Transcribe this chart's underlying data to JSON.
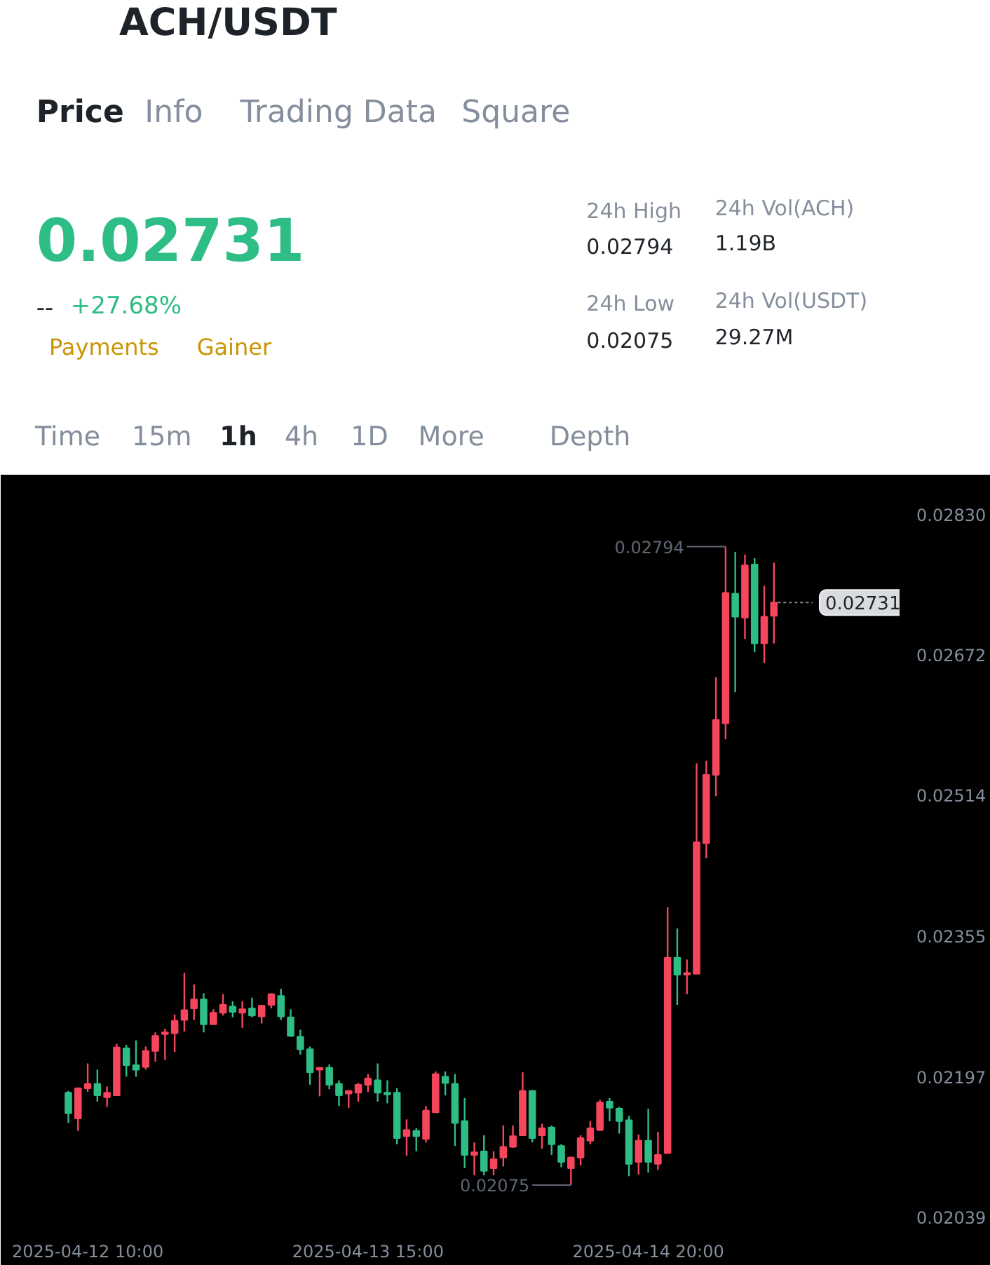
{
  "chart_data": {
    "type": "candlestick",
    "title": "ACH/USDT",
    "annotations": [
      "Price",
      "Info",
      "Trading Data",
      "Square",
      "0.02731",
      "--",
      "+27.68%",
      "Payments",
      "Gainer",
      "24h High",
      "0.02794",
      "24h Vol(ACH)",
      "1.19B",
      "24h Low",
      "0.02075",
      "24h Vol(USDT)",
      "29.27M",
      "Time",
      "15m",
      "1h",
      "4h",
      "1D",
      "More",
      "Depth",
      {
        "text": "0.02794",
        "x": "2025-04-15T04:00",
        "y": 0.02794
      },
      {
        "text": "0.02075",
        "x": "2025-04-14T12:00",
        "y": 0.02075
      },
      {
        "text": "0.02731",
        "x": "2025-04-15T09:00",
        "y": 0.02731
      }
    ],
    "x": [
      "2025-04-12T08:00",
      "2025-04-12T09:00",
      "2025-04-12T10:00",
      "2025-04-12T11:00",
      "2025-04-12T12:00",
      "2025-04-12T13:00",
      "2025-04-12T14:00",
      "2025-04-12T15:00",
      "2025-04-12T16:00",
      "2025-04-12T17:00",
      "2025-04-12T18:00",
      "2025-04-12T19:00",
      "2025-04-12T20:00",
      "2025-04-12T21:00",
      "2025-04-12T22:00",
      "2025-04-12T23:00",
      "2025-04-13T00:00",
      "2025-04-13T01:00",
      "2025-04-13T02:00",
      "2025-04-13T03:00",
      "2025-04-13T04:00",
      "2025-04-13T05:00",
      "2025-04-13T06:00",
      "2025-04-13T07:00",
      "2025-04-13T08:00",
      "2025-04-13T09:00",
      "2025-04-13T10:00",
      "2025-04-13T11:00",
      "2025-04-13T12:00",
      "2025-04-13T13:00",
      "2025-04-13T14:00",
      "2025-04-13T15:00",
      "2025-04-13T16:00",
      "2025-04-13T17:00",
      "2025-04-13T18:00",
      "2025-04-13T19:00",
      "2025-04-13T20:00",
      "2025-04-13T21:00",
      "2025-04-13T22:00",
      "2025-04-13T23:00",
      "2025-04-14T00:00",
      "2025-04-14T01:00",
      "2025-04-14T02:00",
      "2025-04-14T03:00",
      "2025-04-14T04:00",
      "2025-04-14T05:00",
      "2025-04-14T06:00",
      "2025-04-14T07:00",
      "2025-04-14T08:00",
      "2025-04-14T09:00",
      "2025-04-14T10:00",
      "2025-04-14T11:00",
      "2025-04-14T12:00",
      "2025-04-14T13:00",
      "2025-04-14T14:00",
      "2025-04-14T15:00",
      "2025-04-14T16:00",
      "2025-04-14T17:00",
      "2025-04-14T18:00",
      "2025-04-14T19:00",
      "2025-04-14T20:00",
      "2025-04-14T21:00",
      "2025-04-14T22:00",
      "2025-04-14T23:00",
      "2025-04-15T00:00",
      "2025-04-15T01:00",
      "2025-04-15T02:00",
      "2025-04-15T03:00",
      "2025-04-15T04:00",
      "2025-04-15T05:00",
      "2025-04-15T06:00",
      "2025-04-15T07:00",
      "2025-04-15T08:00",
      "2025-04-15T09:00"
    ],
    "ohlc": [
      [
        0.02179,
        0.02181,
        0.02145,
        0.02156
      ],
      [
        0.0215,
        0.02185,
        0.02136,
        0.02184
      ],
      [
        0.02184,
        0.02212,
        0.0218,
        0.02189
      ],
      [
        0.02189,
        0.02205,
        0.02169,
        0.02176
      ],
      [
        0.02174,
        0.02186,
        0.02163,
        0.02179
      ],
      [
        0.02176,
        0.02234,
        0.02176,
        0.0223
      ],
      [
        0.02229,
        0.02233,
        0.02197,
        0.0221
      ],
      [
        0.0221,
        0.02238,
        0.02197,
        0.02205
      ],
      [
        0.02208,
        0.02231,
        0.02205,
        0.02226
      ],
      [
        0.02226,
        0.02247,
        0.02214,
        0.02243
      ],
      [
        0.02245,
        0.02251,
        0.02216,
        0.02247
      ],
      [
        0.02246,
        0.02267,
        0.02225,
        0.0226
      ],
      [
        0.02261,
        0.02314,
        0.02248,
        0.02272
      ],
      [
        0.02274,
        0.02301,
        0.02261,
        0.02284
      ],
      [
        0.02284,
        0.02291,
        0.02247,
        0.02256
      ],
      [
        0.02256,
        0.02273,
        0.02256,
        0.02269
      ],
      [
        0.02269,
        0.0229,
        0.02266,
        0.02278
      ],
      [
        0.02276,
        0.02282,
        0.02264,
        0.0227
      ],
      [
        0.02269,
        0.02282,
        0.02252,
        0.02273
      ],
      [
        0.02274,
        0.02286,
        0.02264,
        0.02266
      ],
      [
        0.02265,
        0.02278,
        0.02257,
        0.02277
      ],
      [
        0.02278,
        0.02291,
        0.02274,
        0.0229
      ],
      [
        0.02288,
        0.02296,
        0.02261,
        0.02265
      ],
      [
        0.02264,
        0.02273,
        0.02242,
        0.02243
      ],
      [
        0.02242,
        0.0225,
        0.02222,
        0.02228
      ],
      [
        0.02228,
        0.02231,
        0.02188,
        0.02202
      ],
      [
        0.02205,
        0.02207,
        0.02175,
        0.02207
      ],
      [
        0.02207,
        0.02211,
        0.02183,
        0.02188
      ],
      [
        0.02189,
        0.02193,
        0.02164,
        0.02176
      ],
      [
        0.02178,
        0.02182,
        0.02162,
        0.02181
      ],
      [
        0.02179,
        0.0219,
        0.02169,
        0.02188
      ],
      [
        0.02188,
        0.022,
        0.0218,
        0.02195
      ],
      [
        0.02193,
        0.02212,
        0.02169,
        0.02179
      ],
      [
        0.02179,
        0.02193,
        0.02167,
        0.02177
      ],
      [
        0.02179,
        0.02184,
        0.02121,
        0.02128
      ],
      [
        0.0213,
        0.02149,
        0.02108,
        0.02137
      ],
      [
        0.02136,
        0.02139,
        0.02113,
        0.0213
      ],
      [
        0.02127,
        0.02164,
        0.02123,
        0.02159
      ],
      [
        0.02157,
        0.02203,
        0.02156,
        0.022
      ],
      [
        0.02197,
        0.02203,
        0.02176,
        0.0219
      ],
      [
        0.02189,
        0.022,
        0.02119,
        0.02145
      ],
      [
        0.02147,
        0.02173,
        0.02094,
        0.02109
      ],
      [
        0.02109,
        0.02123,
        0.02086,
        0.02112
      ],
      [
        0.02113,
        0.02131,
        0.02086,
        0.02091
      ],
      [
        0.02094,
        0.02113,
        0.02086,
        0.02104
      ],
      [
        0.02106,
        0.02142,
        0.02096,
        0.02118
      ],
      [
        0.02118,
        0.02142,
        0.02117,
        0.0213
      ],
      [
        0.02131,
        0.02202,
        0.02131,
        0.02181
      ],
      [
        0.02181,
        0.02182,
        0.02123,
        0.02128
      ],
      [
        0.02131,
        0.02144,
        0.02116,
        0.02139
      ],
      [
        0.0214,
        0.02142,
        0.02109,
        0.02121
      ],
      [
        0.02119,
        0.02121,
        0.02095,
        0.02101
      ],
      [
        0.02094,
        0.02107,
        0.02075,
        0.02106
      ],
      [
        0.02106,
        0.02131,
        0.02097,
        0.02128
      ],
      [
        0.02125,
        0.02147,
        0.02121,
        0.02139
      ],
      [
        0.02137,
        0.02171,
        0.02136,
        0.02168
      ],
      [
        0.02169,
        0.02173,
        0.02147,
        0.02162
      ],
      [
        0.02161,
        0.02163,
        0.02133,
        0.02147
      ],
      [
        0.02148,
        0.02153,
        0.02085,
        0.02099
      ],
      [
        0.02101,
        0.02132,
        0.02087,
        0.02125
      ],
      [
        0.02125,
        0.02161,
        0.02089,
        0.02101
      ],
      [
        0.02099,
        0.02135,
        0.02092,
        0.02109
      ],
      [
        0.02111,
        0.02388,
        0.02111,
        0.02331
      ],
      [
        0.02331,
        0.02364,
        0.02278,
        0.02312
      ],
      [
        0.02312,
        0.02329,
        0.0229,
        0.02314
      ],
      [
        0.02313,
        0.0255,
        0.02313,
        0.02461
      ],
      [
        0.0246,
        0.02553,
        0.02443,
        0.02537
      ],
      [
        0.02537,
        0.02647,
        0.02513,
        0.02599
      ],
      [
        0.02595,
        0.02794,
        0.02577,
        0.02742
      ],
      [
        0.02741,
        0.02788,
        0.0263,
        0.02715
      ],
      [
        0.02714,
        0.02785,
        0.0269,
        0.02773
      ],
      [
        0.02774,
        0.02781,
        0.02675,
        0.02685
      ],
      [
        0.02685,
        0.0275,
        0.02663,
        0.02715
      ],
      [
        0.02716,
        0.02776,
        0.02685,
        0.02731
      ]
    ],
    "colors": [
      "#2ebd85",
      "#f6465d",
      "#f6465d",
      "#2ebd85",
      "#f6465d",
      "#f6465d",
      "#2ebd85",
      "#2ebd85",
      "#f6465d",
      "#f6465d",
      "#f6465d",
      "#f6465d",
      "#f6465d",
      "#f6465d",
      "#2ebd85",
      "#f6465d",
      "#f6465d",
      "#2ebd85",
      "#f6465d",
      "#2ebd85",
      "#f6465d",
      "#f6465d",
      "#2ebd85",
      "#2ebd85",
      "#2ebd85",
      "#2ebd85",
      "#f6465d",
      "#2ebd85",
      "#2ebd85",
      "#f6465d",
      "#f6465d",
      "#f6465d",
      "#2ebd85",
      "#2ebd85",
      "#2ebd85",
      "#f6465d",
      "#2ebd85",
      "#f6465d",
      "#f6465d",
      "#2ebd85",
      "#2ebd85",
      "#2ebd85",
      "#f6465d",
      "#2ebd85",
      "#f6465d",
      "#f6465d",
      "#f6465d",
      "#f6465d",
      "#2ebd85",
      "#f6465d",
      "#2ebd85",
      "#2ebd85",
      "#f6465d",
      "#f6465d",
      "#f6465d",
      "#f6465d",
      "#2ebd85",
      "#2ebd85",
      "#2ebd85",
      "#f6465d",
      "#2ebd85",
      "#f6465d",
      "#f6465d",
      "#2ebd85",
      "#f6465d",
      "#f6465d",
      "#f6465d",
      "#f6465d",
      "#f6465d",
      "#2ebd85",
      "#f6465d",
      "#2ebd85",
      "#f6465d",
      "#f6465d"
    ],
    "xlim": [
      "2025-04-12T01:00",
      "2025-04-15T22:00"
    ],
    "xticks": [
      {
        "value": "2025-04-12T10:00",
        "label": "2025-04-12 10:00"
      },
      {
        "value": "2025-04-13T15:00",
        "label": "2025-04-13 15:00"
      },
      {
        "value": "2025-04-14T20:00",
        "label": "2025-04-14 20:00"
      }
    ],
    "ylim": [
      0.0203,
      0.02875
    ],
    "yticks": [
      {
        "value": 0.0283,
        "label": "0.02830"
      },
      0.02672,
      0.02514,
      0.02355,
      0.02197,
      0.02039
    ]
  }
}
